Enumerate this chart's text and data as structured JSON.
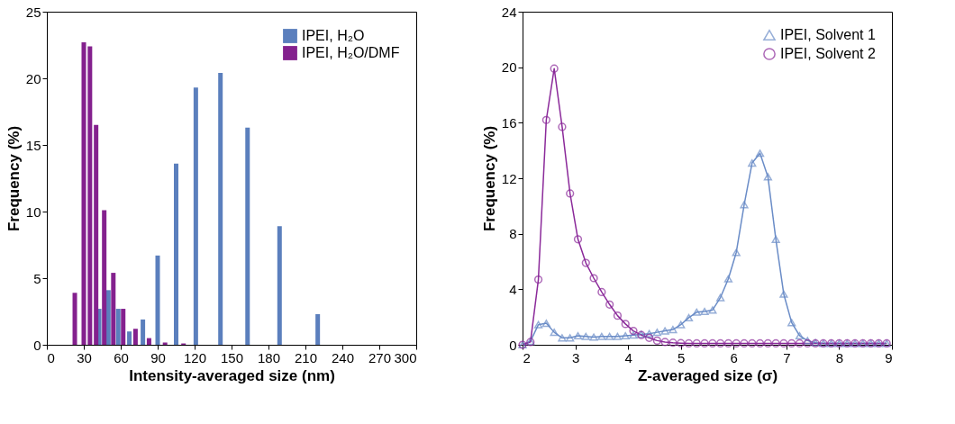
{
  "chart_data": [
    {
      "type": "bar",
      "xlabel": "Intensity-averaged size (nm)",
      "ylabel": "Frequency (%)",
      "xlim": [
        0,
        300
      ],
      "xticks": [
        0,
        30,
        60,
        90,
        120,
        150,
        180,
        210,
        240,
        270,
        300
      ],
      "ylim": [
        0,
        25
      ],
      "yticks": [
        0,
        5,
        10,
        15,
        20,
        25
      ],
      "grid": false,
      "legend": "top right",
      "series": [
        {
          "name": "IPEI, H₂O",
          "color": "#5b7fbd",
          "x": [
            42.5,
            50,
            58,
            67,
            78,
            90,
            105,
            121,
            141,
            163,
            189,
            220
          ],
          "values": [
            2.7,
            4.1,
            2.7,
            1.0,
            1.9,
            6.7,
            13.6,
            19.3,
            20.4,
            16.3,
            8.9,
            2.3
          ]
        },
        {
          "name": "IPEI, H₂O/DMF",
          "color": "#84218e",
          "x": [
            22.7,
            30,
            35,
            40,
            46.6,
            54,
            62,
            72,
            83,
            96,
            111
          ],
          "values": [
            3.9,
            22.7,
            22.4,
            16.5,
            10.1,
            5.4,
            2.7,
            1.2,
            0.5,
            0.17,
            0.1
          ]
        }
      ]
    },
    {
      "type": "line",
      "xlabel": "Z-averaged size (σ)",
      "ylabel": "Frequency (%)",
      "xlim": [
        2,
        9
      ],
      "xticks": [
        2,
        3,
        4,
        5,
        6,
        7,
        8,
        9
      ],
      "ylim": [
        0,
        24
      ],
      "yticks": [
        0,
        4,
        8,
        12,
        16,
        20,
        24
      ],
      "grid": false,
      "legend": "top right",
      "x": [
        2,
        2.15,
        2.3,
        2.45,
        2.6,
        2.75,
        2.9,
        3.05,
        3.2,
        3.35,
        3.5,
        3.65,
        3.8,
        3.95,
        4.1,
        4.25,
        4.4,
        4.55,
        4.7,
        4.85,
        5,
        5.15,
        5.3,
        5.45,
        5.6,
        5.75,
        5.9,
        6.05,
        6.2,
        6.35,
        6.5,
        6.65,
        6.8,
        6.95,
        7.1,
        7.25,
        7.4,
        7.55,
        7.7,
        7.85,
        8,
        8.15,
        8.3,
        8.45,
        8.6,
        8.75,
        8.9
      ],
      "series": [
        {
          "name": "IPEI, Solvent 1",
          "color": "#6a8cc7",
          "marker": "triangle",
          "values": [
            0,
            0.25,
            1.45,
            1.55,
            0.9,
            0.5,
            0.5,
            0.65,
            0.6,
            0.55,
            0.6,
            0.6,
            0.6,
            0.65,
            0.7,
            0.75,
            0.8,
            0.9,
            1.0,
            1.1,
            1.45,
            1.95,
            2.35,
            2.4,
            2.5,
            3.4,
            4.75,
            6.65,
            10.1,
            13.1,
            13.8,
            12.1,
            7.6,
            3.65,
            1.6,
            0.65,
            0.3,
            0.15,
            0.1,
            0.1,
            0.1,
            0.1,
            0.1,
            0.1,
            0.1,
            0.1,
            0.1
          ]
        },
        {
          "name": "IPEI, Solvent 2",
          "color": "#8b2a9a",
          "marker": "circle",
          "values": [
            0,
            0.2,
            4.7,
            16.2,
            19.9,
            15.7,
            10.9,
            7.6,
            5.9,
            4.8,
            3.8,
            2.9,
            2.1,
            1.5,
            1.0,
            0.7,
            0.5,
            0.3,
            0.2,
            0.15,
            0.12,
            0.1,
            0.1,
            0.1,
            0.1,
            0.1,
            0.1,
            0.1,
            0.1,
            0.1,
            0.1,
            0.1,
            0.1,
            0.1,
            0.1,
            0.1,
            0.1,
            0.1,
            0.1,
            0.1,
            0.1,
            0.1,
            0.1,
            0.1,
            0.1,
            0.1,
            0.1
          ]
        }
      ]
    }
  ]
}
